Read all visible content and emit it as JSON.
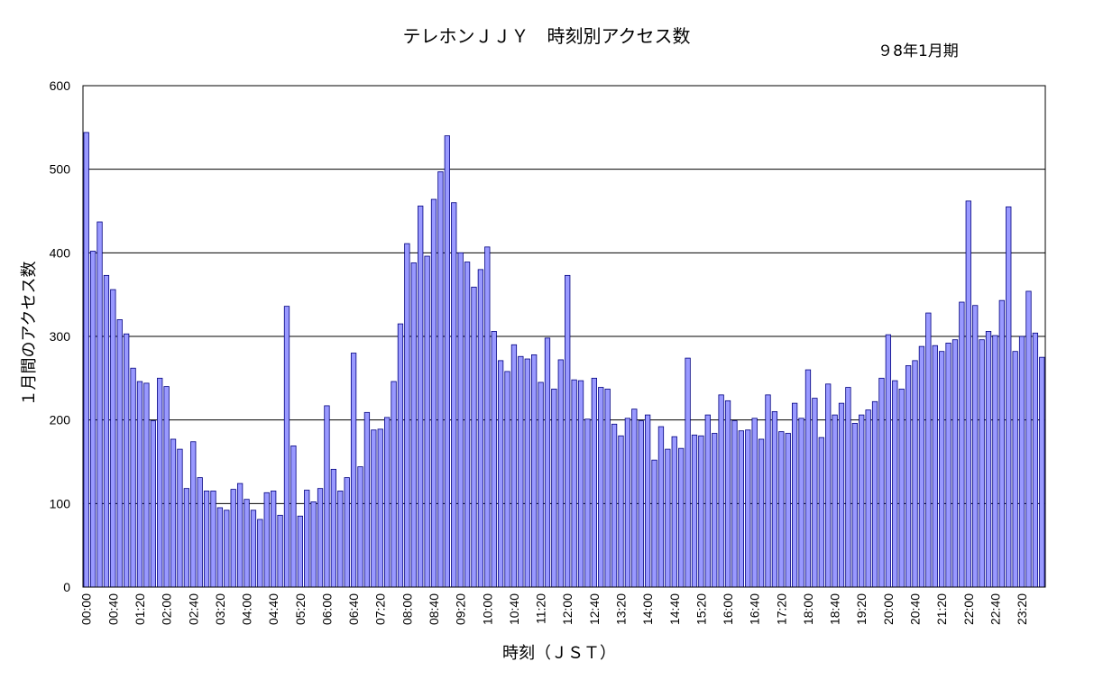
{
  "chart_data": {
    "type": "bar",
    "title": "テレホンＪＪＹ　時刻別アクセス数",
    "subtitle": "９8年1月期",
    "xlabel": "時刻（ＪＳＴ）",
    "ylabel": "１月間のアクセス数",
    "ylim": [
      0,
      600
    ],
    "yticks": [
      0,
      100,
      200,
      300,
      400,
      500,
      600
    ],
    "grid": true,
    "legend": "none",
    "bar_color": "#9999ff",
    "bar_edge": "#000080",
    "x_tick_labels": [
      "00:00",
      "00:40",
      "01:20",
      "02:00",
      "02:40",
      "03:20",
      "04:00",
      "04:40",
      "05:20",
      "06:00",
      "06:40",
      "07:20",
      "08:00",
      "08:40",
      "09:20",
      "10:00",
      "10:40",
      "11:20",
      "12:00",
      "12:40",
      "13:20",
      "14:00",
      "14:40",
      "15:20",
      "16:00",
      "16:40",
      "17:20",
      "18:00",
      "18:40",
      "19:20",
      "20:00",
      "20:40",
      "21:20",
      "22:00",
      "22:40",
      "23:20"
    ],
    "interval_minutes": 10,
    "values": [
      544,
      402,
      437,
      373,
      356,
      320,
      303,
      262,
      246,
      244,
      199,
      250,
      240,
      177,
      165,
      118,
      174,
      131,
      115,
      115,
      95,
      92,
      117,
      124,
      105,
      92,
      81,
      113,
      115,
      86,
      336,
      169,
      85,
      116,
      102,
      118,
      217,
      141,
      115,
      131,
      280,
      144,
      209,
      188,
      189,
      203,
      246,
      315,
      411,
      388,
      456,
      396,
      464,
      497,
      540,
      460,
      400,
      389,
      359,
      380,
      407,
      306,
      271,
      258,
      290,
      276,
      273,
      278,
      245,
      298,
      237,
      272,
      373,
      248,
      247,
      201,
      250,
      239,
      237,
      195,
      181,
      202,
      213,
      199,
      206,
      152,
      192,
      165,
      180,
      166,
      274,
      182,
      181,
      206,
      184,
      230,
      223,
      199,
      187,
      188,
      202,
      177,
      230,
      210,
      186,
      184,
      220,
      202,
      260,
      226,
      179,
      243,
      206,
      220,
      239,
      196,
      206,
      212,
      222,
      250,
      302,
      247,
      237,
      265,
      271,
      288,
      328,
      289,
      282,
      292,
      296,
      341,
      462,
      337,
      296,
      306,
      301,
      343,
      455,
      282,
      300,
      354,
      304,
      275
    ]
  }
}
